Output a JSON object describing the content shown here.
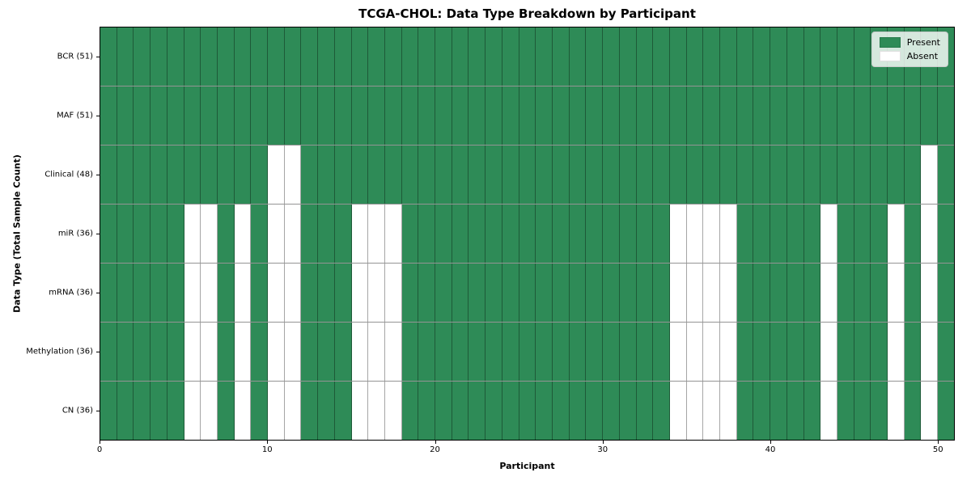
{
  "chart_data": {
    "type": "heatmap",
    "title": "TCGA-CHOL: Data Type Breakdown by Participant",
    "xlabel": "Participant",
    "ylabel": "Data Type (Total Sample Count)",
    "n_participants": 51,
    "x_range": [
      0,
      51
    ],
    "x_ticks": [
      0,
      10,
      20,
      30,
      40,
      50
    ],
    "grid": true,
    "rows": [
      {
        "label": "BCR (51)",
        "data_type": "BCR",
        "present_count": 51,
        "absent_participants": []
      },
      {
        "label": "MAF (51)",
        "data_type": "MAF",
        "present_count": 51,
        "absent_participants": []
      },
      {
        "label": "Clinical (48)",
        "data_type": "Clinical",
        "present_count": 48,
        "absent_participants": [
          10,
          11,
          49
        ]
      },
      {
        "label": "miR (36)",
        "data_type": "miR",
        "present_count": 36,
        "absent_participants": [
          5,
          6,
          8,
          10,
          11,
          15,
          16,
          17,
          34,
          35,
          36,
          37,
          43,
          47,
          49
        ]
      },
      {
        "label": "mRNA (36)",
        "data_type": "mRNA",
        "present_count": 36,
        "absent_participants": [
          5,
          6,
          8,
          10,
          11,
          15,
          16,
          17,
          34,
          35,
          36,
          37,
          43,
          47,
          49
        ]
      },
      {
        "label": "Methylation (36)",
        "data_type": "Methylation",
        "present_count": 36,
        "absent_participants": [
          5,
          6,
          8,
          10,
          11,
          15,
          16,
          17,
          34,
          35,
          36,
          37,
          43,
          47,
          49
        ]
      },
      {
        "label": "CN (36)",
        "data_type": "CN",
        "present_count": 36,
        "absent_participants": [
          5,
          6,
          8,
          10,
          11,
          15,
          16,
          17,
          34,
          35,
          36,
          37,
          43,
          47,
          49
        ]
      }
    ],
    "legend": {
      "position": "upper right",
      "items": [
        {
          "label": "Present",
          "color": "#2e8b57"
        },
        {
          "label": "Absent",
          "color": "#ffffff"
        }
      ]
    },
    "colors": {
      "present": "#2e8b57",
      "absent": "#ffffff",
      "gridline": "rgba(0,0,0,0.38)"
    }
  }
}
